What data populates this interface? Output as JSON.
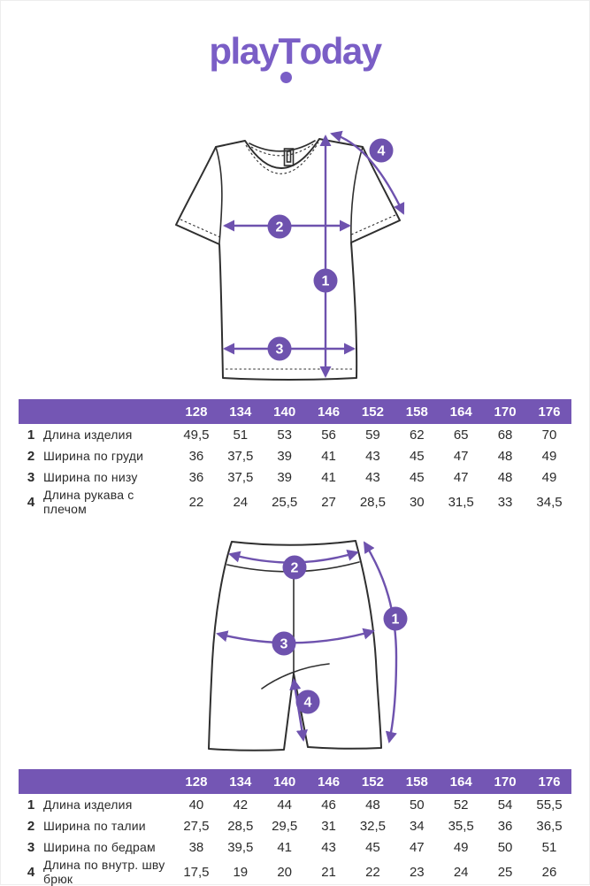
{
  "logo": {
    "play": "play",
    "t": "T",
    "oday": "oday"
  },
  "colors": {
    "accent": "#7456b4",
    "arrow": "#6e52ae",
    "logo": "#7a5ec6",
    "ink": "#2b2b2b",
    "outline": "#2f2f2f"
  },
  "tshirt_diagram": {
    "badges": [
      "1",
      "2",
      "3",
      "4"
    ]
  },
  "shorts_diagram": {
    "badges": [
      "1",
      "2",
      "3",
      "4"
    ]
  },
  "tables": [
    {
      "sizes": [
        "128",
        "134",
        "140",
        "146",
        "152",
        "158",
        "164",
        "170",
        "176"
      ],
      "rows": [
        {
          "num": "1",
          "label": "Длина изделия",
          "values": [
            "49,5",
            "51",
            "53",
            "56",
            "59",
            "62",
            "65",
            "68",
            "70"
          ]
        },
        {
          "num": "2",
          "label": "Ширина по груди",
          "values": [
            "36",
            "37,5",
            "39",
            "41",
            "43",
            "45",
            "47",
            "48",
            "49"
          ]
        },
        {
          "num": "3",
          "label": "Ширина по низу",
          "values": [
            "36",
            "37,5",
            "39",
            "41",
            "43",
            "45",
            "47",
            "48",
            "49"
          ]
        },
        {
          "num": "4",
          "label": "Длина рукава с плечом",
          "values": [
            "22",
            "24",
            "25,5",
            "27",
            "28,5",
            "30",
            "31,5",
            "33",
            "34,5"
          ]
        }
      ]
    },
    {
      "sizes": [
        "128",
        "134",
        "140",
        "146",
        "152",
        "158",
        "164",
        "170",
        "176"
      ],
      "rows": [
        {
          "num": "1",
          "label": "Длина изделия",
          "values": [
            "40",
            "42",
            "44",
            "46",
            "48",
            "50",
            "52",
            "54",
            "55,5"
          ]
        },
        {
          "num": "2",
          "label": "Ширина по талии",
          "values": [
            "27,5",
            "28,5",
            "29,5",
            "31",
            "32,5",
            "34",
            "35,5",
            "36",
            "36,5"
          ]
        },
        {
          "num": "3",
          "label": "Ширина по бедрам",
          "values": [
            "38",
            "39,5",
            "41",
            "43",
            "45",
            "47",
            "49",
            "50",
            "51"
          ]
        },
        {
          "num": "4",
          "label": "Длина по внутр. шву брюк",
          "values": [
            "17,5",
            "19",
            "20",
            "21",
            "22",
            "23",
            "24",
            "25",
            "26"
          ]
        }
      ]
    }
  ]
}
